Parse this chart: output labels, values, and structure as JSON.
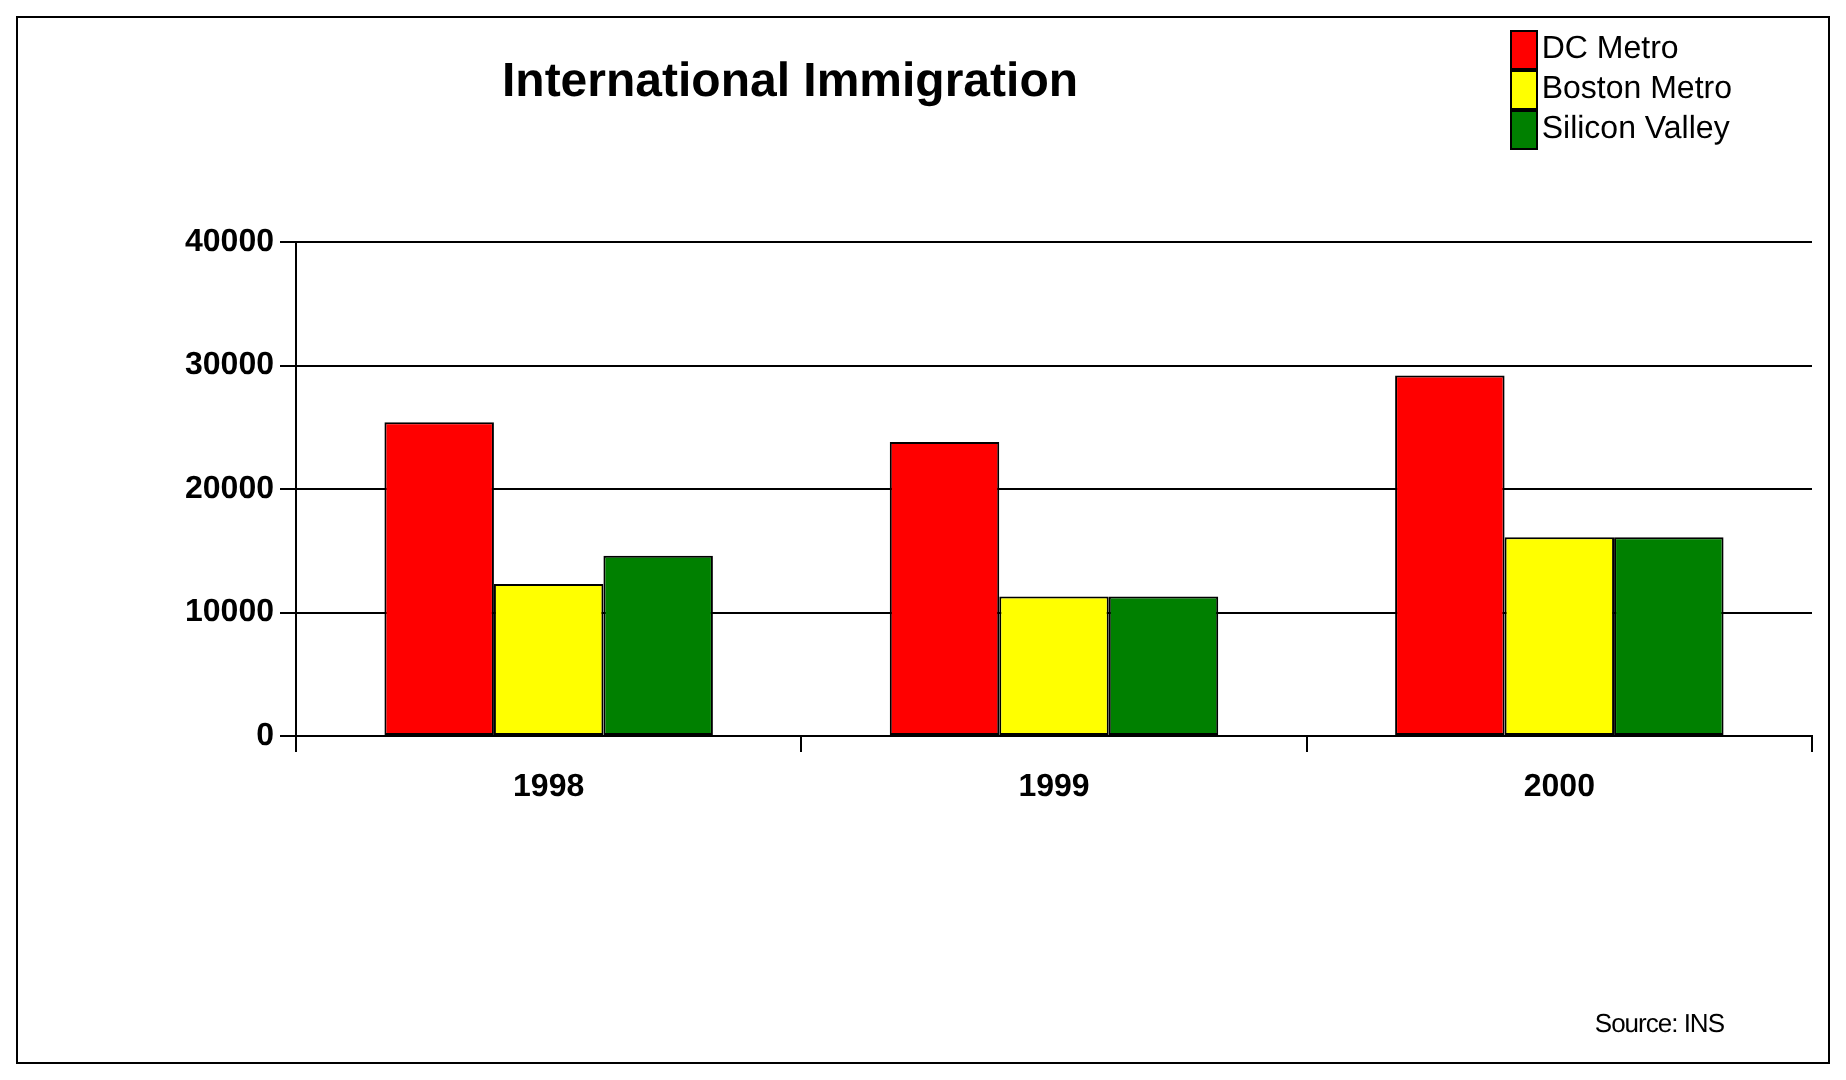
{
  "chart_data": {
    "type": "bar",
    "title": "International Immigration",
    "categories": [
      "1998",
      "1999",
      "2000"
    ],
    "series": [
      {
        "name": "DC Metro",
        "color": "#ff0000",
        "values": [
          25400,
          23800,
          29200
        ]
      },
      {
        "name": "Boston Metro",
        "color": "#ffff00",
        "values": [
          12300,
          11300,
          16100
        ]
      },
      {
        "name": "Silicon Valley",
        "color": "#008000",
        "values": [
          14600,
          11300,
          16100
        ]
      }
    ],
    "ylim": [
      0,
      40000
    ],
    "yticks": [
      0,
      10000,
      20000,
      30000,
      40000
    ],
    "grid": "y",
    "legend": "top right",
    "annotations": [
      "Source: INS"
    ]
  }
}
